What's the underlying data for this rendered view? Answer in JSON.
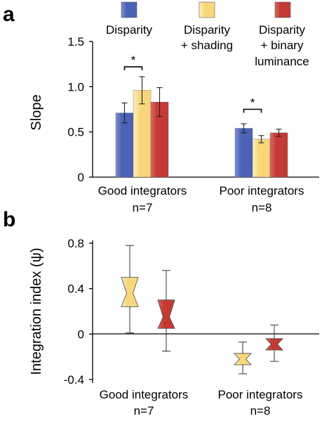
{
  "panel_labels": {
    "a": "a",
    "b": "b"
  },
  "legend": [
    {
      "label_lines": [
        "Disparity"
      ],
      "color": "#4b62b5"
    },
    {
      "label_lines": [
        "Disparity",
        "+ shading"
      ],
      "color": "#f8d77c"
    },
    {
      "label_lines": [
        "Disparity",
        "+ binary",
        "luminance"
      ],
      "color": "#c43a35"
    }
  ],
  "colors": {
    "disparity": "#4b62b5",
    "disparity_light": "#7e90d2",
    "shading": "#f8d77c",
    "shading_light": "#fcefc6",
    "luminance": "#c43a35",
    "luminance_light": "#dd6a5f",
    "axis": "#000000"
  },
  "chart_data": [
    {
      "type": "bar",
      "panel": "a",
      "ylabel": "Slope",
      "ylim": [
        0,
        1.5
      ],
      "yticks": [
        0,
        0.5,
        1.0,
        1.5
      ],
      "ytick_labels": [
        "0",
        "0.5",
        "1.0",
        "1.5"
      ],
      "categories": [
        {
          "lines": [
            "Good integrators",
            "n=7"
          ]
        },
        {
          "lines": [
            "Poor integrators",
            "n=8"
          ]
        }
      ],
      "series": [
        {
          "name": "Disparity",
          "values": [
            0.71,
            0.54
          ],
          "errors": [
            0.11,
            0.05
          ]
        },
        {
          "name": "Disparity + shading",
          "values": [
            0.96,
            0.42
          ],
          "errors": [
            0.15,
            0.04
          ]
        },
        {
          "name": "Disparity + binary luminance",
          "values": [
            0.83,
            0.49
          ],
          "errors": [
            0.16,
            0.04
          ]
        }
      ],
      "significance": [
        {
          "category": 0,
          "between": [
            0,
            1
          ],
          "label": "*",
          "y": 1.22
        },
        {
          "category": 1,
          "between": [
            0,
            1
          ],
          "label": "*",
          "y": 0.75
        }
      ]
    },
    {
      "type": "box",
      "panel": "b",
      "ylabel": "Integration index (ψ)",
      "ylim": [
        -0.4,
        0.8
      ],
      "yticks": [
        -0.4,
        0,
        0.4,
        0.8
      ],
      "ytick_labels": [
        "-0.4",
        "0",
        "0.4",
        "0.8"
      ],
      "categories": [
        {
          "lines": [
            "Good integrators",
            "n=7"
          ]
        },
        {
          "lines": [
            "Poor integrators",
            "n=8"
          ]
        }
      ],
      "boxes": [
        {
          "category": 0,
          "series": "Disparity + shading",
          "whisker_low": 0.01,
          "q1": 0.24,
          "median": 0.36,
          "q3": 0.5,
          "whisker_high": 0.78
        },
        {
          "category": 0,
          "series": "Disparity + binary luminance",
          "whisker_low": -0.15,
          "q1": 0.05,
          "median": 0.15,
          "q3": 0.3,
          "whisker_high": 0.56
        },
        {
          "category": 1,
          "series": "Disparity + shading",
          "whisker_low": -0.35,
          "q1": -0.27,
          "median": -0.22,
          "q3": -0.17,
          "whisker_high": -0.07
        },
        {
          "category": 1,
          "series": "Disparity + binary luminance",
          "whisker_low": -0.24,
          "q1": -0.14,
          "median": -0.09,
          "q3": -0.04,
          "whisker_high": 0.08
        }
      ]
    }
  ]
}
